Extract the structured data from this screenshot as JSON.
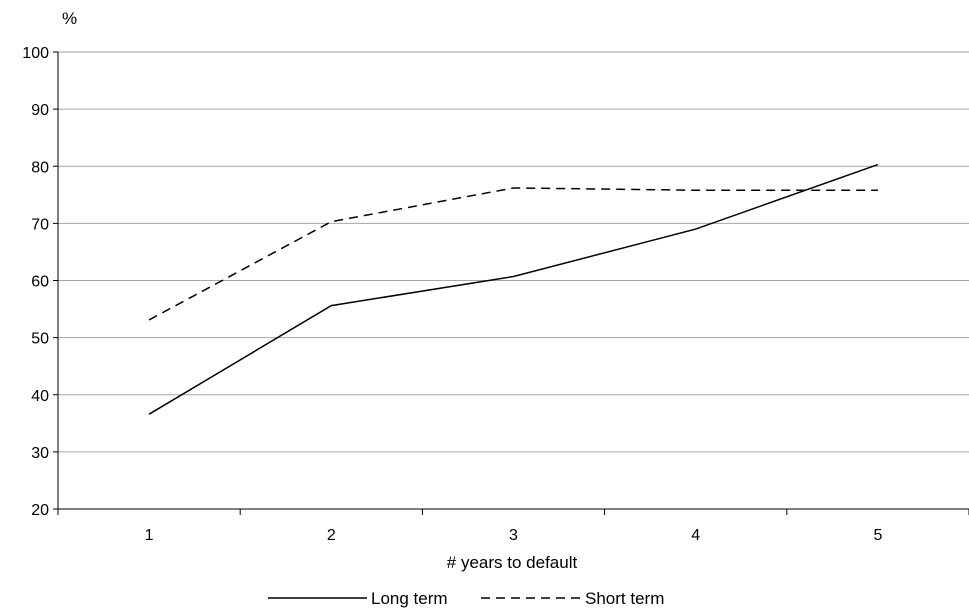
{
  "chart_data": {
    "type": "line",
    "categories": [
      "1",
      "2",
      "3",
      "4",
      "5"
    ],
    "series": [
      {
        "name": "Long term",
        "values": [
          36.6,
          55.6,
          60.7,
          69.0,
          80.3
        ],
        "line_style": "solid",
        "color": "#000000"
      },
      {
        "name": "Short term",
        "values": [
          53.1,
          70.3,
          76.2,
          75.8,
          75.8
        ],
        "line_style": "dashed",
        "color": "#000000"
      }
    ],
    "y_unit": "%",
    "xlabel": "# years to default",
    "ylim": [
      20,
      100
    ],
    "yticks": [
      20,
      30,
      40,
      50,
      60,
      70,
      80,
      90,
      100
    ],
    "grid": "horizontal",
    "legend_position": "bottom"
  }
}
